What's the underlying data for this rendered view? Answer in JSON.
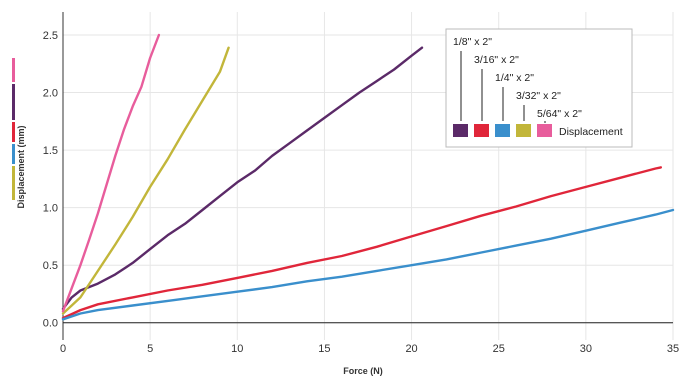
{
  "chart_data": {
    "type": "line",
    "xlabel": "Force (N)",
    "ylabel": "Displacement (mm)",
    "xlim": [
      0,
      35
    ],
    "ylim": [
      -0.15,
      2.7
    ],
    "xticks": [
      "0",
      "5",
      "10",
      "15",
      "20",
      "25",
      "30",
      "35"
    ],
    "yticks": [
      "0.0",
      "0.5",
      "1.0",
      "1.5",
      "2.0",
      "2.5"
    ],
    "grid": true,
    "legend_position": "top-right",
    "legend_label": "Displacement",
    "series": [
      {
        "name": "1/8\" x 2\"",
        "color": "#5b2a68",
        "x": [
          0,
          0.5,
          1,
          2,
          3,
          4,
          5,
          6,
          7,
          8,
          9,
          10,
          11,
          12,
          13,
          14,
          15,
          16,
          17,
          18,
          19,
          20,
          20.6
        ],
        "y": [
          0.12,
          0.22,
          0.28,
          0.34,
          0.42,
          0.52,
          0.64,
          0.76,
          0.86,
          0.98,
          1.1,
          1.22,
          1.32,
          1.45,
          1.56,
          1.67,
          1.78,
          1.89,
          2.0,
          2.1,
          2.2,
          2.32,
          2.39
        ]
      },
      {
        "name": "3/16\" x 2\"",
        "color": "#e0263a",
        "x": [
          0,
          1,
          2,
          4,
          6,
          8,
          10,
          12,
          14,
          16,
          18,
          20,
          22,
          24,
          26,
          28,
          30,
          32,
          34,
          34.3
        ],
        "y": [
          0.04,
          0.11,
          0.16,
          0.22,
          0.28,
          0.33,
          0.39,
          0.45,
          0.52,
          0.58,
          0.66,
          0.75,
          0.84,
          0.93,
          1.01,
          1.1,
          1.18,
          1.26,
          1.34,
          1.35
        ]
      },
      {
        "name": "1/4\" x 2\"",
        "color": "#3a8fcc",
        "x": [
          0,
          1,
          2,
          4,
          6,
          8,
          10,
          12,
          14,
          16,
          18,
          20,
          22,
          24,
          26,
          28,
          30,
          32,
          34,
          35
        ],
        "y": [
          0.03,
          0.08,
          0.11,
          0.15,
          0.19,
          0.23,
          0.27,
          0.31,
          0.36,
          0.4,
          0.45,
          0.5,
          0.55,
          0.61,
          0.67,
          0.73,
          0.8,
          0.87,
          0.94,
          0.98
        ]
      },
      {
        "name": "3/32\" x 2\"",
        "color": "#c2b63a",
        "x": [
          0,
          0.5,
          1,
          2,
          3,
          4,
          5,
          6,
          7,
          8,
          9,
          9.5
        ],
        "y": [
          0.08,
          0.15,
          0.22,
          0.45,
          0.68,
          0.92,
          1.18,
          1.42,
          1.68,
          1.93,
          2.18,
          2.39
        ]
      },
      {
        "name": "5/64\" x 2\"",
        "color": "#e85d9c",
        "x": [
          0,
          0.5,
          1,
          1.5,
          2,
          2.5,
          3,
          3.5,
          4,
          4.5,
          5,
          5.5
        ],
        "y": [
          0.1,
          0.3,
          0.5,
          0.72,
          0.95,
          1.2,
          1.45,
          1.68,
          1.88,
          2.05,
          2.3,
          2.5
        ]
      }
    ]
  }
}
